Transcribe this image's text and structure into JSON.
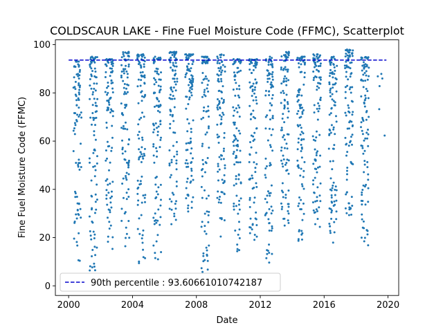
{
  "chart_data": {
    "type": "scatter",
    "title": "COLDSCAUR LAKE - Fine Fuel Moisture Code (FFMC), Scatterplot",
    "xlabel": "Date",
    "ylabel": "Fine Fuel Moisture Code (FFMC)",
    "xlim": [
      "1999-03-01",
      "2020-09-01"
    ],
    "ylim": [
      -4,
      102
    ],
    "x_ticks": [
      "2000",
      "2004",
      "2008",
      "2012",
      "2016",
      "2020"
    ],
    "y_ticks": [
      "0",
      "20",
      "40",
      "60",
      "80",
      "100"
    ],
    "grid": false,
    "legend_position": "lower-left",
    "point_color": "#1f77b4",
    "reference_line": {
      "label": "90th percentile : 93.60661010742187",
      "value": 93.60661010742187,
      "color": "#0000cc",
      "style": "dashed"
    },
    "seasons": [
      {
        "year": 2000,
        "n": 85,
        "max": 93,
        "min": 10
      },
      {
        "year": 2001,
        "n": 100,
        "max": 95,
        "min": 5
      },
      {
        "year": 2002,
        "n": 100,
        "max": 94,
        "min": 15
      },
      {
        "year": 2003,
        "n": 95,
        "max": 97,
        "min": 15
      },
      {
        "year": 2004,
        "n": 100,
        "max": 96,
        "min": 5
      },
      {
        "year": 2005,
        "n": 100,
        "max": 95,
        "min": 5
      },
      {
        "year": 2006,
        "n": 100,
        "max": 97,
        "min": 25
      },
      {
        "year": 2007,
        "n": 100,
        "max": 96,
        "min": 20
      },
      {
        "year": 2008,
        "n": 95,
        "max": 95,
        "min": 5
      },
      {
        "year": 2009,
        "n": 95,
        "max": 96,
        "min": 20
      },
      {
        "year": 2010,
        "n": 100,
        "max": 94,
        "min": 14
      },
      {
        "year": 2011,
        "n": 100,
        "max": 94,
        "min": 19
      },
      {
        "year": 2012,
        "n": 100,
        "max": 95,
        "min": 9
      },
      {
        "year": 2013,
        "n": 100,
        "max": 97,
        "min": 22
      },
      {
        "year": 2014,
        "n": 100,
        "max": 95,
        "min": 18
      },
      {
        "year": 2015,
        "n": 100,
        "max": 96,
        "min": 24
      },
      {
        "year": 2016,
        "n": 100,
        "max": 95,
        "min": 17
      },
      {
        "year": 2017,
        "n": 100,
        "max": 98,
        "min": 29
      },
      {
        "year": 2018,
        "n": 100,
        "max": 95,
        "min": 16
      },
      {
        "year": 2019,
        "n": 6,
        "max": 88,
        "min": 59
      }
    ]
  }
}
